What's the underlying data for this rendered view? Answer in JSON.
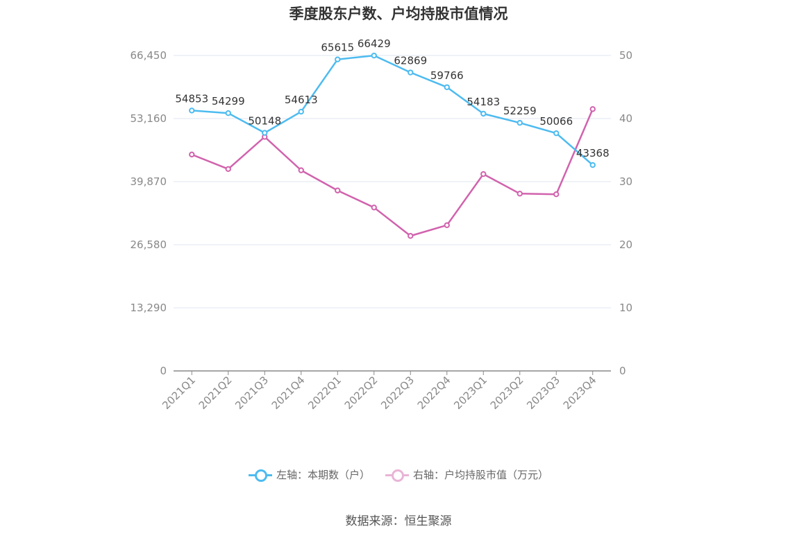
{
  "title": "季度股东户数、户均持股市值情况",
  "source": "数据来源：恒生聚源",
  "colors": {
    "left_series": "#4dbbf0",
    "right_series": "#d162ad",
    "grid": "#dfe6ef",
    "axis": "#888888"
  },
  "chart_data": {
    "type": "line",
    "title": "季度股东户数、户均持股市值情况",
    "categories": [
      "2021Q1",
      "2021Q2",
      "2021Q3",
      "2021Q4",
      "2022Q1",
      "2022Q2",
      "2022Q3",
      "2022Q4",
      "2023Q1",
      "2023Q2",
      "2023Q3",
      "2023Q4"
    ],
    "left_axis": {
      "ticks": [
        "0",
        "13,290",
        "26,580",
        "39,870",
        "53,160",
        "66,450"
      ],
      "ylim": [
        0,
        66450
      ]
    },
    "right_axis": {
      "ticks": [
        "0",
        "10",
        "20",
        "30",
        "40",
        "50"
      ],
      "ylim": [
        0,
        50
      ]
    },
    "grid": true,
    "legend_position": "bottom",
    "series": [
      {
        "name": "左轴：本期数（户）",
        "axis": "left",
        "values": [
          54853,
          54299,
          50148,
          54613,
          65615,
          66429,
          62869,
          59766,
          54183,
          52259,
          50066,
          43368
        ],
        "labels": [
          "54853",
          "54299",
          "50148",
          "54613",
          "65615",
          "66429",
          "62869",
          "59766",
          "54183",
          "52259",
          "50066",
          "43368"
        ]
      },
      {
        "name": "右轴：户均持股市值（万元）",
        "axis": "right",
        "values": [
          34.3,
          32.0,
          37.1,
          31.8,
          28.6,
          25.9,
          21.4,
          23.1,
          31.2,
          28.1,
          28.0,
          41.5
        ]
      }
    ]
  }
}
